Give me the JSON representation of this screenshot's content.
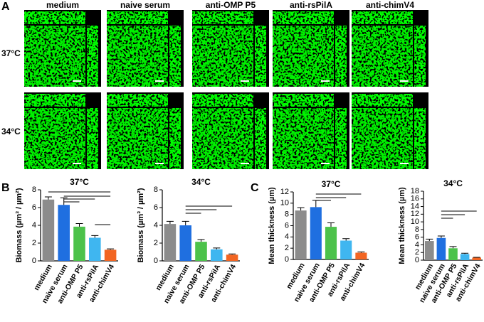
{
  "panel_labels": [
    "A",
    "B",
    "C"
  ],
  "panel_a": {
    "columns": [
      "medium",
      "naive serum",
      "anti-OMP P5",
      "anti-rsPilA",
      "anti-chimV4"
    ],
    "rows": [
      "37°C",
      "34°C"
    ]
  },
  "chart_data": [
    {
      "type": "bar",
      "title": "37°C",
      "ylabel": "Biomass (µm³ / µm²)",
      "categories": [
        "medium",
        "naive serum",
        "anti-OMP P5",
        "anti-rsPilA",
        "anti-chimV4"
      ],
      "values": [
        6.9,
        6.3,
        3.85,
        2.6,
        1.25
      ],
      "errors": [
        0.3,
        0.8,
        0.35,
        0.25,
        0.1
      ],
      "colors": [
        "#8c8c8c",
        "#1f6fe0",
        "#4cc24a",
        "#3fb6f0",
        "#f26522"
      ],
      "ylim": [
        0,
        8
      ],
      "yticks": [
        0,
        2,
        4,
        6,
        8
      ]
    },
    {
      "type": "bar",
      "title": "34°C",
      "ylabel": "Biomass (µm³ / µm²)",
      "categories": [
        "medium",
        "naive serum",
        "anti-OMP P5",
        "anti-rsPilA",
        "anti-chimV4"
      ],
      "values": [
        4.15,
        4.0,
        2.15,
        1.3,
        0.7
      ],
      "errors": [
        0.3,
        0.45,
        0.25,
        0.15,
        0.08
      ],
      "colors": [
        "#8c8c8c",
        "#1f6fe0",
        "#4cc24a",
        "#3fb6f0",
        "#f26522"
      ],
      "ylim": [
        0,
        8
      ],
      "yticks": [
        0,
        2,
        4,
        6,
        8
      ]
    },
    {
      "type": "bar",
      "title": "37°C",
      "ylabel": "Mean thickness (µm)",
      "categories": [
        "medium",
        "naive serum",
        "anti-OMP P5",
        "anti-rsPilA",
        "anti-chimV4"
      ],
      "values": [
        8.7,
        9.3,
        5.8,
        3.35,
        1.2
      ],
      "errors": [
        0.5,
        1.2,
        0.7,
        0.35,
        0.15
      ],
      "colors": [
        "#8c8c8c",
        "#1f6fe0",
        "#4cc24a",
        "#3fb6f0",
        "#f26522"
      ],
      "ylim": [
        0,
        12
      ],
      "yticks": [
        0,
        2,
        4,
        6,
        8,
        10,
        12
      ]
    },
    {
      "type": "bar",
      "title": "34°C",
      "ylabel": "Mean thickness (µm)",
      "categories": [
        "medium",
        "naive serum",
        "anti-OMP P5",
        "anti-rsPilA",
        "anti-chimV4"
      ],
      "values": [
        5.0,
        5.8,
        3.1,
        1.6,
        0.65
      ],
      "errors": [
        0.5,
        0.5,
        0.45,
        0.2,
        0.1
      ],
      "colors": [
        "#8c8c8c",
        "#1f6fe0",
        "#4cc24a",
        "#3fb6f0",
        "#f26522"
      ],
      "ylim": [
        0,
        18
      ],
      "yticks": [
        0,
        2,
        4,
        6,
        8,
        10,
        12,
        14,
        16,
        18
      ]
    }
  ]
}
